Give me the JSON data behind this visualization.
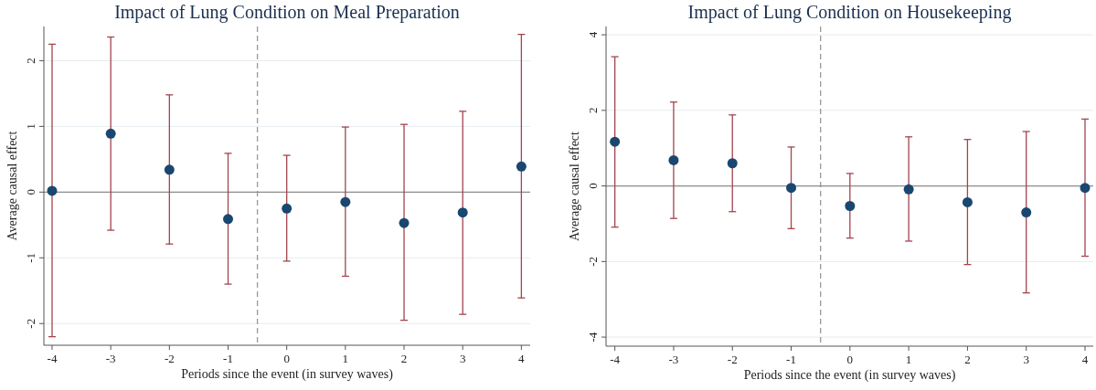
{
  "chart_data": [
    {
      "type": "scatter",
      "title": "Impact of Lung Condition on Meal Preparation",
      "xlabel": "Periods since the event (in survey waves)",
      "ylabel": "Average causal effect",
      "x": [
        -4,
        -3,
        -2,
        -1,
        0,
        1,
        2,
        3,
        4
      ],
      "xlim": [
        -4.14,
        4.15
      ],
      "xticks": [
        -4,
        -3,
        -2,
        -1,
        0,
        1,
        2,
        3,
        4
      ],
      "ylim": [
        -2.33,
        2.52
      ],
      "yticks": [
        -2,
        -1,
        0,
        1,
        2
      ],
      "grid": "y",
      "marker": "circle",
      "series": [
        {
          "color": "#1a476f",
          "values": [
            0.02,
            0.89,
            0.34,
            -0.41,
            -0.25,
            -0.15,
            -0.47,
            -0.31,
            0.39
          ],
          "errors": [
            [
              -2.2,
              2.25
            ],
            [
              -0.58,
              2.36
            ],
            [
              -0.79,
              1.48
            ],
            [
              -1.4,
              0.59
            ],
            [
              -1.05,
              0.56
            ],
            [
              -1.28,
              0.99
            ],
            [
              -1.95,
              1.03
            ],
            [
              -1.86,
              1.23
            ],
            [
              -1.61,
              2.4
            ]
          ]
        }
      ],
      "ref_lines": [
        {
          "axis": "x",
          "value": -0.5,
          "color": "#999999",
          "line_style": "dashed"
        },
        {
          "axis": "y",
          "value": 0,
          "color": "#8c8c8c",
          "line_style": "solid"
        }
      ]
    },
    {
      "type": "scatter",
      "title": "Impact of Lung Condition on Housekeeping",
      "xlabel": "Periods since the event (in survey waves)",
      "ylabel": "Average causal effect",
      "x": [
        -4,
        -3,
        -2,
        -1,
        0,
        1,
        2,
        3,
        4
      ],
      "xlim": [
        -4.15,
        4.14
      ],
      "xticks": [
        -4,
        -3,
        -2,
        -1,
        0,
        1,
        2,
        3,
        4
      ],
      "ylim": [
        -4.24,
        4.22
      ],
      "yticks": [
        -4,
        -2,
        0,
        2,
        4
      ],
      "grid": "y",
      "marker": "circle",
      "series": [
        {
          "color": "#1a476f",
          "values": [
            1.17,
            0.68,
            0.6,
            -0.05,
            -0.53,
            -0.09,
            -0.43,
            -0.7,
            -0.05
          ],
          "errors": [
            [
              -1.09,
              3.42
            ],
            [
              -0.86,
              2.22
            ],
            [
              -0.68,
              1.88
            ],
            [
              -1.13,
              1.03
            ],
            [
              -1.38,
              0.33
            ],
            [
              -1.46,
              1.3
            ],
            [
              -2.08,
              1.23
            ],
            [
              -2.83,
              1.44
            ],
            [
              -1.86,
              1.77
            ]
          ]
        }
      ],
      "ref_lines": [
        {
          "axis": "x",
          "value": -0.5,
          "color": "#999999",
          "line_style": "dashed"
        },
        {
          "axis": "y",
          "value": 0,
          "color": "#8c8c8c",
          "line_style": "solid"
        }
      ]
    }
  ]
}
